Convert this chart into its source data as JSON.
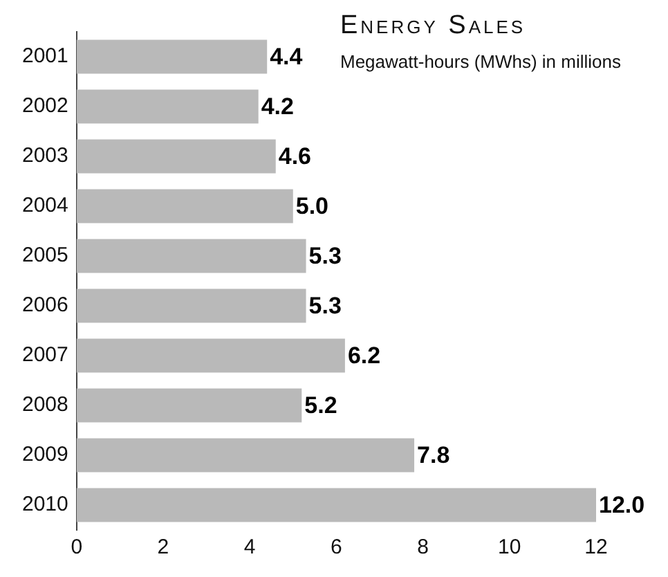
{
  "chart_data": {
    "type": "bar",
    "orientation": "horizontal",
    "title": "Energy Sales",
    "subtitle": "Megawatt-hours (MWhs) in millions",
    "categories": [
      "2001",
      "2002",
      "2003",
      "2004",
      "2005",
      "2006",
      "2007",
      "2008",
      "2009",
      "2010"
    ],
    "values": [
      4.4,
      4.2,
      4.6,
      5.0,
      5.3,
      5.3,
      6.2,
      5.2,
      7.8,
      12.0
    ],
    "value_labels": [
      "4.4",
      "4.2",
      "4.6",
      "5.0",
      "5.3",
      "5.3",
      "6.2",
      "5.2",
      "7.8",
      "12.0"
    ],
    "color": "#b9b9b9",
    "xlim": [
      0,
      12
    ],
    "xticks": [
      0,
      2,
      4,
      6,
      8,
      10,
      12
    ]
  }
}
